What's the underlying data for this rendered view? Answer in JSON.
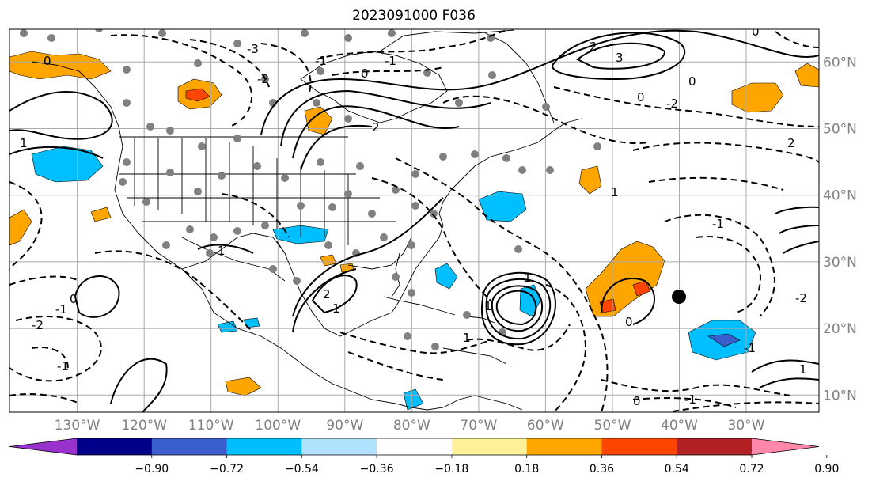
{
  "title": "2023091000 F036",
  "map": {
    "projection": "plate carree",
    "lon_range": [
      -138,
      -17
    ],
    "lat_range": [
      7.5,
      65
    ],
    "lon_labels": [
      {
        "lon": -130,
        "text": "130°W"
      },
      {
        "lon": -120,
        "text": "120°W"
      },
      {
        "lon": -110,
        "text": "110°W"
      },
      {
        "lon": -100,
        "text": "100°W"
      },
      {
        "lon": -90,
        "text": "90°W"
      },
      {
        "lon": -80,
        "text": "80°W"
      },
      {
        "lon": -70,
        "text": "70°W"
      },
      {
        "lon": -60,
        "text": "60°W"
      },
      {
        "lon": -50,
        "text": "50°W"
      },
      {
        "lon": -40,
        "text": "40°W"
      },
      {
        "lon": -30,
        "text": "30°W"
      }
    ],
    "lat_labels": [
      {
        "lat": 60,
        "text": "60°N"
      },
      {
        "lat": 50,
        "text": "50°N"
      },
      {
        "lat": 40,
        "text": "40°N"
      },
      {
        "lat": 30,
        "text": "30°N"
      },
      {
        "lat": 20,
        "text": "20°N"
      },
      {
        "lat": 10,
        "text": "10°N"
      }
    ],
    "contour_labels": [
      "-3",
      "-1",
      "0",
      "-1",
      "-2",
      "0",
      "1",
      "2",
      "3",
      "2",
      "0",
      "-2",
      "1",
      "0",
      "2",
      "0",
      "-1",
      "-2",
      "2",
      "1",
      "0",
      "-1",
      "1",
      "-1",
      "1",
      "1",
      "-1",
      "-2",
      "-1",
      "0",
      "1",
      "1",
      "0"
    ]
  },
  "colorbar": {
    "colors": [
      "#9932cc",
      "#00008b",
      "#3a5fcd",
      "#00bfff",
      "#b0e2ff",
      "#ffffff",
      "#fff09a",
      "#ffa500",
      "#ff4500",
      "#b22222",
      "#ff88aa"
    ],
    "tick_labels": [
      "−0.90",
      "−0.72",
      "−0.54",
      "−0.36",
      "−0.18",
      "0.18",
      "0.36",
      "0.54",
      "0.72",
      "0.90"
    ]
  }
}
